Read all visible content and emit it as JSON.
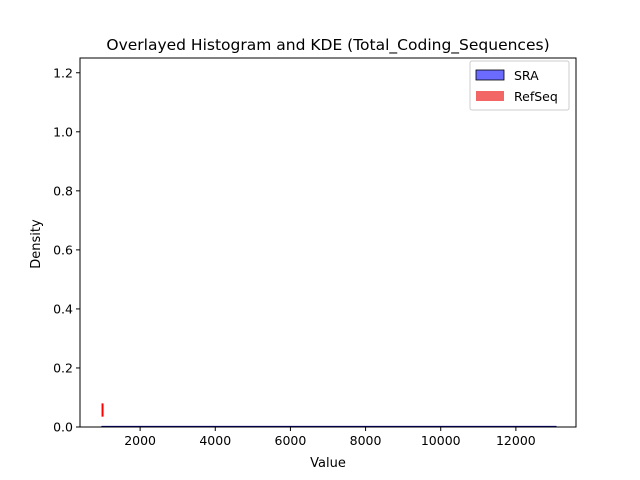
{
  "chart_data": {
    "type": "histogram+kde",
    "title": "Overlayed Histogram and KDE (Total_Coding_Sequences)",
    "xlabel": "Value",
    "ylabel": "Density",
    "xlim": [
      400,
      13600
    ],
    "ylim": [
      0,
      1.25
    ],
    "xticks": [
      2000,
      4000,
      6000,
      8000,
      10000,
      12000
    ],
    "yticks": [
      0.0,
      0.2,
      0.4,
      0.6,
      0.8,
      1.0,
      1.2
    ],
    "xtick_labels": [
      "2000",
      "4000",
      "6000",
      "8000",
      "10000",
      "12000"
    ],
    "ytick_labels": [
      "0.0",
      "0.2",
      "0.4",
      "0.6",
      "0.8",
      "1.0",
      "1.2"
    ],
    "legend_position": "upper right",
    "grid": false,
    "series": [
      {
        "name": "SRA",
        "kind": "histogram+kde",
        "fill_color": "#6b6bff",
        "edge_color": "#000080",
        "kde_color": "#00008b",
        "x_range": [
          970,
          13080
        ],
        "kde_points": [
          [
            970,
            0.001
          ],
          [
            3000,
            0.001
          ],
          [
            6000,
            0.001
          ],
          [
            9000,
            0.001
          ],
          [
            13080,
            0.001
          ]
        ]
      },
      {
        "name": "RefSeq",
        "kind": "histogram+kde",
        "fill_color": "#f26666",
        "kde_color": "#ff0000",
        "spike_x": 1000,
        "spike_range": [
          0.035,
          0.08
        ]
      }
    ]
  }
}
